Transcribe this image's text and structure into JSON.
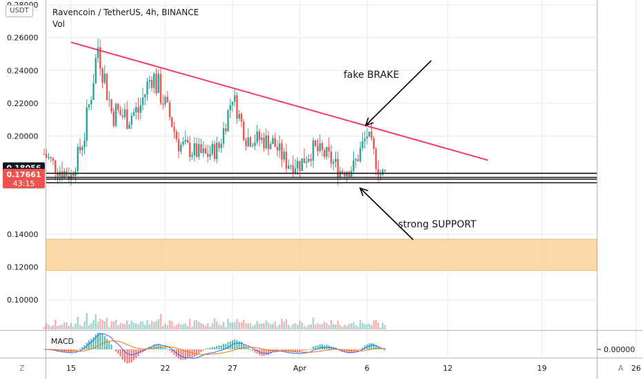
{
  "header": {
    "title": "Ravencoin / TetherUS, 4h, BINANCE",
    "vol_label": "Vol",
    "currency_button": "USDT"
  },
  "corners": {
    "left": "Z",
    "right": "A"
  },
  "colors": {
    "up": "#26a69a",
    "down": "#ef5350",
    "trendline": "#f23e65",
    "zone": "#fdd29a",
    "grid": "#e8eaee",
    "axis_text": "#131722",
    "macd_line": "#2962ff",
    "signal_line": "#ff6d00",
    "last_price_bg": "#ef5350",
    "dark_label_bg": "#131722"
  },
  "annotations": {
    "fake_brake": "fake BRAKE",
    "strong_support": "strong SUPPORT"
  },
  "macd": {
    "label": "MACD",
    "axis_label": "0.00000"
  },
  "price_labels": {
    "last_price": "0.17661",
    "countdown": "43:15",
    "levels": [
      "0.18056",
      "0.17724",
      "0.17370",
      "0.17148"
    ]
  },
  "chart_data": {
    "type": "candlestick",
    "title": "Ravencoin / TetherUS, 4h, BINANCE",
    "ylim": [
      0.082,
      0.283
    ],
    "y_ticks": [
      "0.28000",
      "0.26000",
      "0.24000",
      "0.22000",
      "0.20000",
      "0.14000",
      "0.12000",
      "0.10000"
    ],
    "x_ticks": [
      "15",
      "22",
      "27",
      "Apr",
      "6",
      "12",
      "19",
      "26"
    ],
    "grid": true,
    "trendline": {
      "from": [
        "Mar 15",
        0.2572
      ],
      "to": [
        "Apr 15",
        0.1852
      ]
    },
    "support_levels": [
      0.17724,
      0.17475,
      0.1737,
      0.17148
    ],
    "zone": {
      "from": 0.137,
      "to": 0.118
    },
    "price_path": [
      [
        "Mar 13",
        0.189
      ],
      [
        "Mar 14",
        0.18
      ],
      [
        "Mar 15",
        0.176
      ],
      [
        "Mar 16",
        0.2
      ],
      [
        "Mar 17",
        0.255
      ],
      [
        "Mar 18",
        0.215
      ],
      [
        "Mar 19",
        0.212
      ],
      [
        "Mar 20",
        0.215
      ],
      [
        "Mar 21",
        0.238
      ],
      [
        "Mar 22",
        0.22
      ],
      [
        "Mar 23",
        0.195
      ],
      [
        "Mar 24",
        0.191
      ],
      [
        "Mar 25",
        0.188
      ],
      [
        "Mar 26",
        0.193
      ],
      [
        "Mar 27",
        0.225
      ],
      [
        "Mar 28",
        0.199
      ],
      [
        "Mar 29",
        0.198
      ],
      [
        "Mar 30",
        0.196
      ],
      [
        "Mar 31",
        0.184
      ],
      [
        "Apr 1",
        0.183
      ],
      [
        "Apr 2",
        0.192
      ],
      [
        "Apr 3",
        0.188
      ],
      [
        "Apr 4",
        0.179
      ],
      [
        "Apr 5",
        0.181
      ],
      [
        "Apr 6",
        0.201
      ],
      [
        "Apr 7",
        0.1766
      ]
    ]
  }
}
